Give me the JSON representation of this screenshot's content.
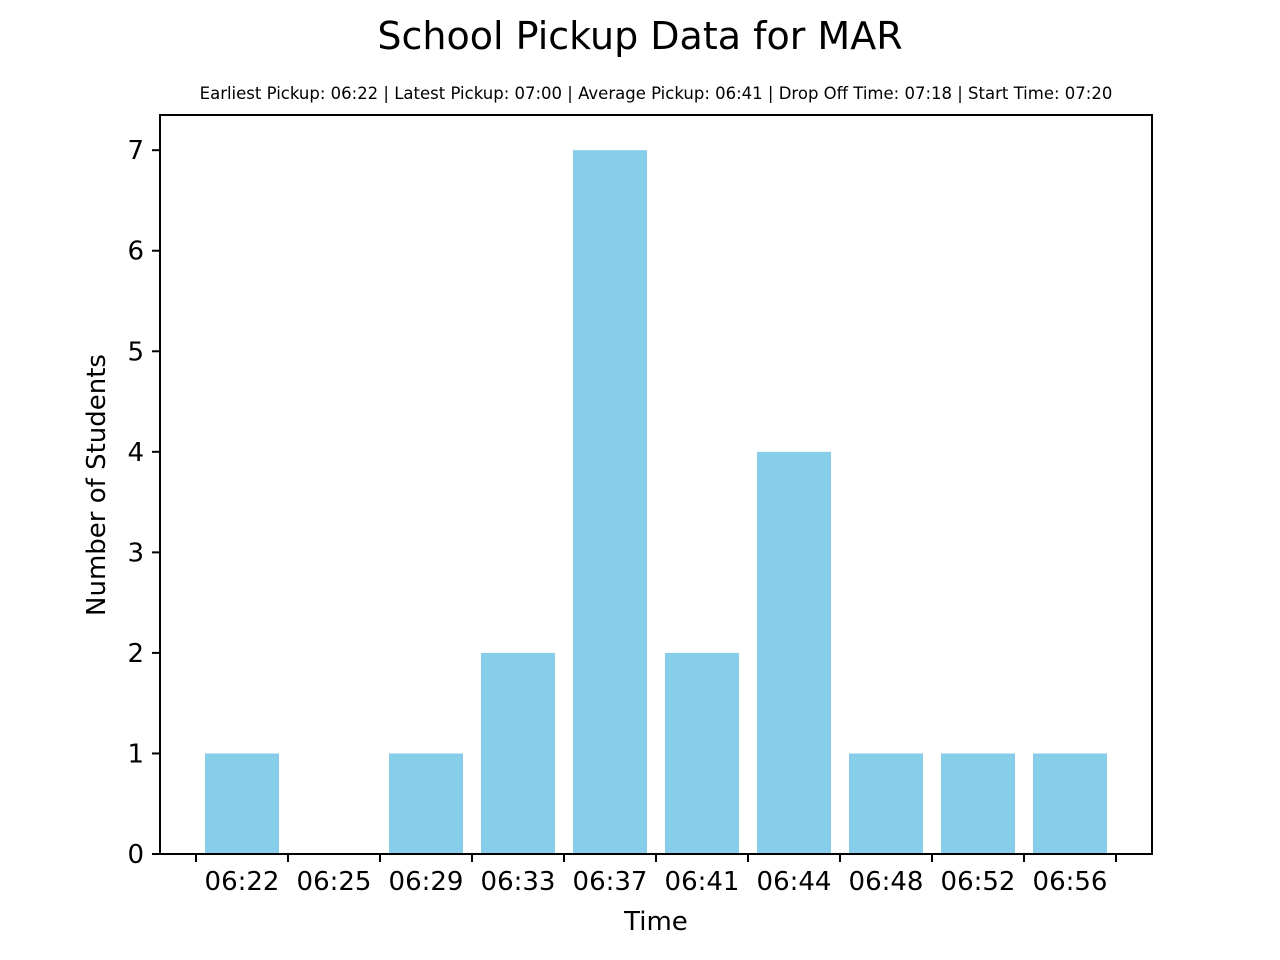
{
  "chart_data": {
    "type": "bar",
    "title": "School Pickup Data for MAR",
    "subtitle": "Earliest Pickup: 06:22 | Latest Pickup: 07:00 | Average Pickup: 06:41 | Drop Off Time: 07:18 | Start Time: 07:20",
    "xlabel": "Time",
    "ylabel": "Number of Students",
    "categories": [
      "06:22",
      "06:25",
      "06:29",
      "06:33",
      "06:37",
      "06:41",
      "06:44",
      "06:48",
      "06:52",
      "06:56"
    ],
    "values": [
      1,
      0,
      1,
      2,
      7,
      2,
      4,
      1,
      1,
      1
    ],
    "yticks": [
      0,
      1,
      2,
      3,
      4,
      5,
      6,
      7
    ],
    "ylim": [
      0,
      7.35
    ],
    "grid": false,
    "bar_color": "#87CEEB"
  }
}
